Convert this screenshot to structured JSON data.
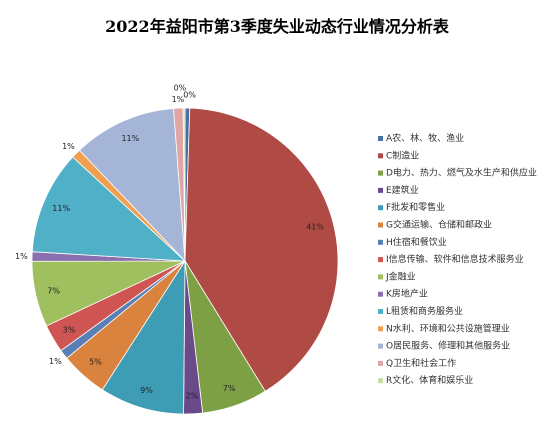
{
  "chart_data": {
    "type": "pie",
    "title": "2022年益阳市第3季度失业动态行业情况分析表",
    "legend_position": "right",
    "categories": [
      "A农、林、牧、渔业",
      "C制造业",
      "D电力、热力、燃气及水生产和供应业",
      "E建筑业",
      "F批发和零售业",
      "G交通运输、仓储和邮政业",
      "H住宿和餐饮业",
      "I信息传输、软件和信息技术服务业",
      "J金融业",
      "K房地产业",
      "L租赁和商务服务业",
      "N水利、环境和公共设施管理业",
      "O居民服务、修理和其他服务业",
      "Q卫生和社会工作",
      "R文化、体育和娱乐业"
    ],
    "values": [
      0.5,
      41,
      7,
      2,
      9,
      5,
      1,
      3,
      7,
      1,
      11,
      1,
      11,
      1,
      0.2
    ],
    "labels": [
      "0%",
      "41%",
      "7%",
      "2%",
      "9%",
      "5%",
      "1%",
      "3%",
      "7%",
      "1%",
      "11%",
      "1%",
      "11%",
      "1%",
      "0%"
    ],
    "colors": [
      "#4a6fa5",
      "#b04a45",
      "#7da045",
      "#6b4a8a",
      "#3f9cb5",
      "#d9833e",
      "#5a7fb5",
      "#cf5552",
      "#a0c060",
      "#8a6fb0",
      "#4fb0c8",
      "#f0a050",
      "#a5b5d8",
      "#e0a5a5",
      "#c5dca5"
    ]
  }
}
